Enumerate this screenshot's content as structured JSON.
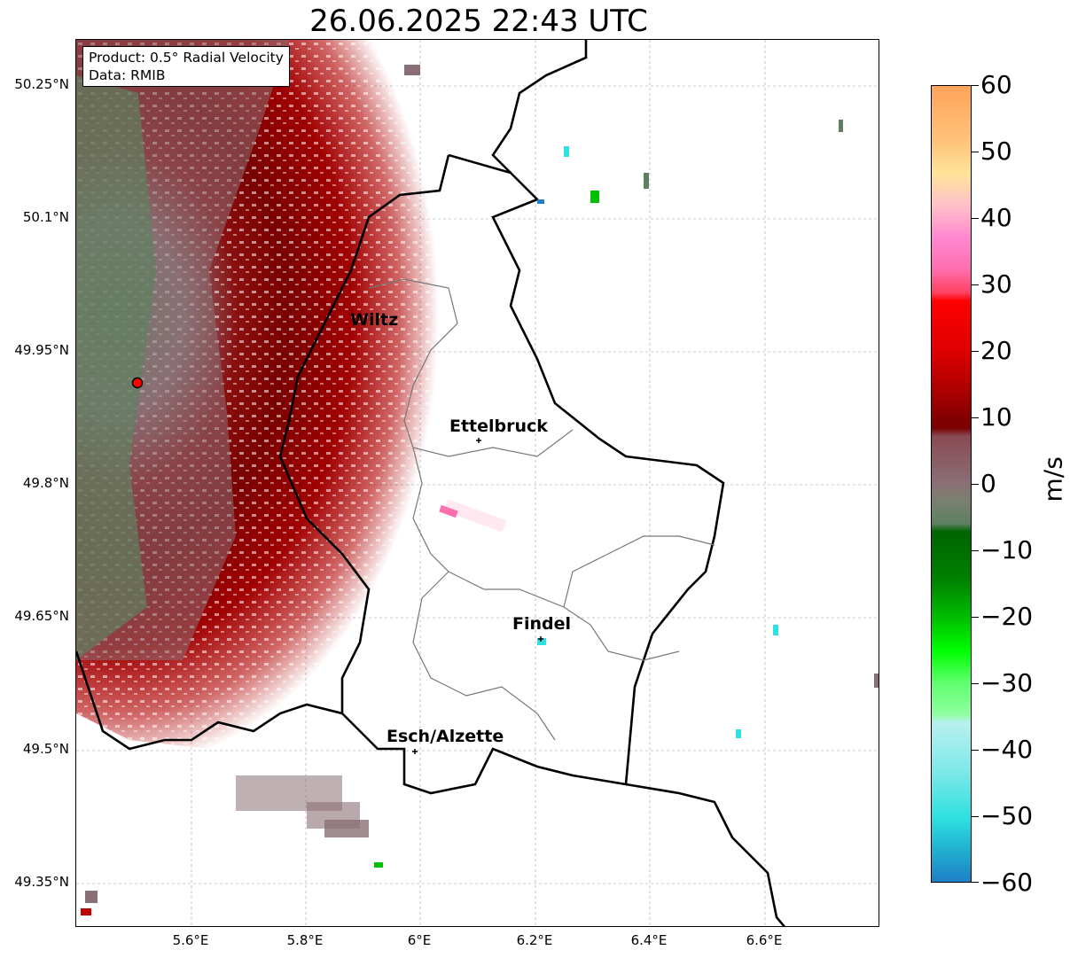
{
  "title": "26.06.2025 22:43 UTC",
  "info": {
    "product": "Product: 0.5° Radial Velocity",
    "data": "Data: RMIB"
  },
  "axes": {
    "lat_labels": [
      "50.25°N",
      "50.1°N",
      "49.95°N",
      "49.8°N",
      "49.65°N",
      "49.5°N",
      "49.35°N"
    ],
    "lon_labels": [
      "5.6°E",
      "5.8°E",
      "6°E",
      "6.2°E",
      "6.4°E",
      "6.6°E"
    ]
  },
  "cities": [
    "Wiltz",
    "Ettelbruck",
    "Findel",
    "Esch/Alzette"
  ],
  "colorbar": {
    "unit": "m/s",
    "ticks": [
      "60",
      "50",
      "40",
      "30",
      "20",
      "10",
      "0",
      "−10",
      "−20",
      "−30",
      "−40",
      "−50",
      "−60"
    ],
    "range": [
      -60,
      60
    ],
    "colors": {
      "orange": "#ffa35a",
      "peach": "#ffd9a0",
      "pink": "#ff6fb0",
      "red_bright": "#ff0000",
      "red_dark": "#7a0000",
      "gray_brown": "#8a6f75",
      "gray_green": "#5f8060",
      "green_dark": "#006400",
      "green_bright": "#00ff00",
      "cyan_light": "#b8f0f0",
      "cyan": "#2ee0e0",
      "blue": "#1e7fc8"
    }
  },
  "radar_marker": "radar-site-marker"
}
